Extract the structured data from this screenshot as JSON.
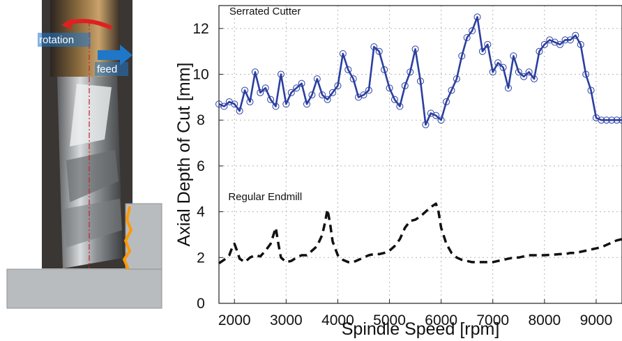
{
  "photo": {
    "rotation_label": "rotation",
    "feed_label": "feed",
    "colors": {
      "rotation_arrow": "#e02020",
      "feed_arrow": "#1f77c9",
      "workpiece": "#b9bcbf",
      "chip_edge": "#ff9900"
    }
  },
  "chart_data": {
    "type": "line",
    "title": "",
    "xlabel": "Spindle Speed [rpm]",
    "ylabel": "Axial Depth of Cut [mm]",
    "xlim": [
      1700,
      9500
    ],
    "ylim": [
      0,
      13
    ],
    "xticks": [
      2000,
      3000,
      4000,
      5000,
      6000,
      7000,
      8000,
      9000
    ],
    "yticks": [
      0,
      2,
      4,
      6,
      8,
      10,
      12
    ],
    "grid": true,
    "annotations": [
      {
        "text": "Serrated Cutter",
        "x": 1900,
        "y": 12.6
      },
      {
        "text": "Regular Endmill",
        "x": 1880,
        "y": 4.5
      }
    ],
    "series": [
      {
        "name": "Serrated Cutter",
        "color": "#2b3fa0",
        "style": "solid-markers",
        "x": [
          1700,
          1800,
          1900,
          2000,
          2100,
          2200,
          2300,
          2400,
          2500,
          2600,
          2700,
          2800,
          2900,
          3000,
          3100,
          3200,
          3300,
          3400,
          3500,
          3600,
          3700,
          3800,
          3900,
          4000,
          4100,
          4200,
          4300,
          4400,
          4500,
          4600,
          4700,
          4800,
          4900,
          5000,
          5100,
          5200,
          5300,
          5400,
          5500,
          5600,
          5700,
          5800,
          5900,
          6000,
          6100,
          6200,
          6300,
          6400,
          6500,
          6600,
          6700,
          6800,
          6900,
          7000,
          7100,
          7200,
          7300,
          7400,
          7500,
          7600,
          7700,
          7800,
          7900,
          8000,
          8100,
          8200,
          8300,
          8400,
          8500,
          8600,
          8700,
          8800,
          8900,
          9000,
          9100,
          9200,
          9300,
          9400,
          9500
        ],
        "y": [
          8.7,
          8.6,
          8.8,
          8.7,
          8.4,
          9.3,
          8.8,
          10.1,
          9.2,
          9.4,
          8.9,
          8.6,
          10.0,
          8.7,
          9.2,
          9.4,
          9.6,
          8.7,
          9.1,
          9.8,
          9.1,
          8.9,
          9.2,
          9.5,
          10.9,
          10.2,
          9.8,
          9.0,
          9.1,
          9.3,
          11.2,
          11.0,
          10.2,
          9.4,
          8.9,
          8.6,
          9.5,
          10.1,
          11.1,
          9.7,
          7.8,
          8.3,
          8.2,
          8.0,
          8.8,
          9.3,
          9.8,
          10.8,
          11.6,
          11.9,
          12.5,
          11.0,
          11.3,
          10.1,
          10.5,
          10.3,
          9.4,
          10.8,
          10.1,
          9.9,
          10.1,
          9.8,
          11.0,
          11.3,
          11.5,
          11.4,
          11.3,
          11.5,
          11.5,
          11.7,
          11.3,
          10.0,
          9.3,
          8.1,
          8.0,
          8.0,
          8.0,
          8.0,
          8.0
        ]
      },
      {
        "name": "Regular Endmill",
        "color": "#111111",
        "style": "dashed",
        "x": [
          1700,
          1800,
          1900,
          1950,
          2000,
          2050,
          2100,
          2200,
          2300,
          2400,
          2500,
          2600,
          2700,
          2800,
          2850,
          2900,
          3000,
          3100,
          3200,
          3300,
          3400,
          3500,
          3600,
          3700,
          3750,
          3800,
          3850,
          3900,
          4000,
          4100,
          4200,
          4300,
          4400,
          4500,
          4600,
          4700,
          4800,
          4900,
          5000,
          5100,
          5200,
          5300,
          5400,
          5500,
          5600,
          5700,
          5800,
          5900,
          5950,
          6000,
          6100,
          6200,
          6300,
          6400,
          6500,
          6600,
          6700,
          6800,
          6900,
          7000,
          7100,
          7200,
          7300,
          7400,
          7500,
          7600,
          7700,
          7800,
          7900,
          8000,
          8100,
          8200,
          8300,
          8400,
          8500,
          8600,
          8700,
          8800,
          8900,
          9000,
          9100,
          9200,
          9300,
          9400,
          9500
        ],
        "y": [
          1.75,
          1.9,
          2.1,
          2.4,
          2.6,
          2.3,
          1.95,
          1.8,
          2.0,
          2.1,
          2.05,
          2.3,
          2.6,
          3.3,
          2.6,
          2.0,
          1.8,
          1.85,
          2.0,
          2.1,
          2.1,
          2.3,
          2.5,
          3.0,
          3.5,
          4.1,
          3.5,
          2.7,
          2.1,
          1.9,
          1.8,
          1.8,
          1.9,
          2.0,
          2.1,
          2.15,
          2.15,
          2.2,
          2.3,
          2.5,
          2.8,
          3.3,
          3.6,
          3.65,
          3.8,
          4.0,
          4.2,
          4.35,
          4.0,
          3.3,
          2.6,
          2.2,
          2.0,
          1.9,
          1.85,
          1.8,
          1.8,
          1.8,
          1.8,
          1.8,
          1.85,
          1.9,
          1.95,
          2.0,
          2.0,
          2.05,
          2.1,
          2.1,
          2.1,
          2.1,
          2.12,
          2.13,
          2.15,
          2.15,
          2.2,
          2.2,
          2.25,
          2.3,
          2.35,
          2.4,
          2.45,
          2.55,
          2.65,
          2.75,
          2.8
        ]
      }
    ]
  }
}
